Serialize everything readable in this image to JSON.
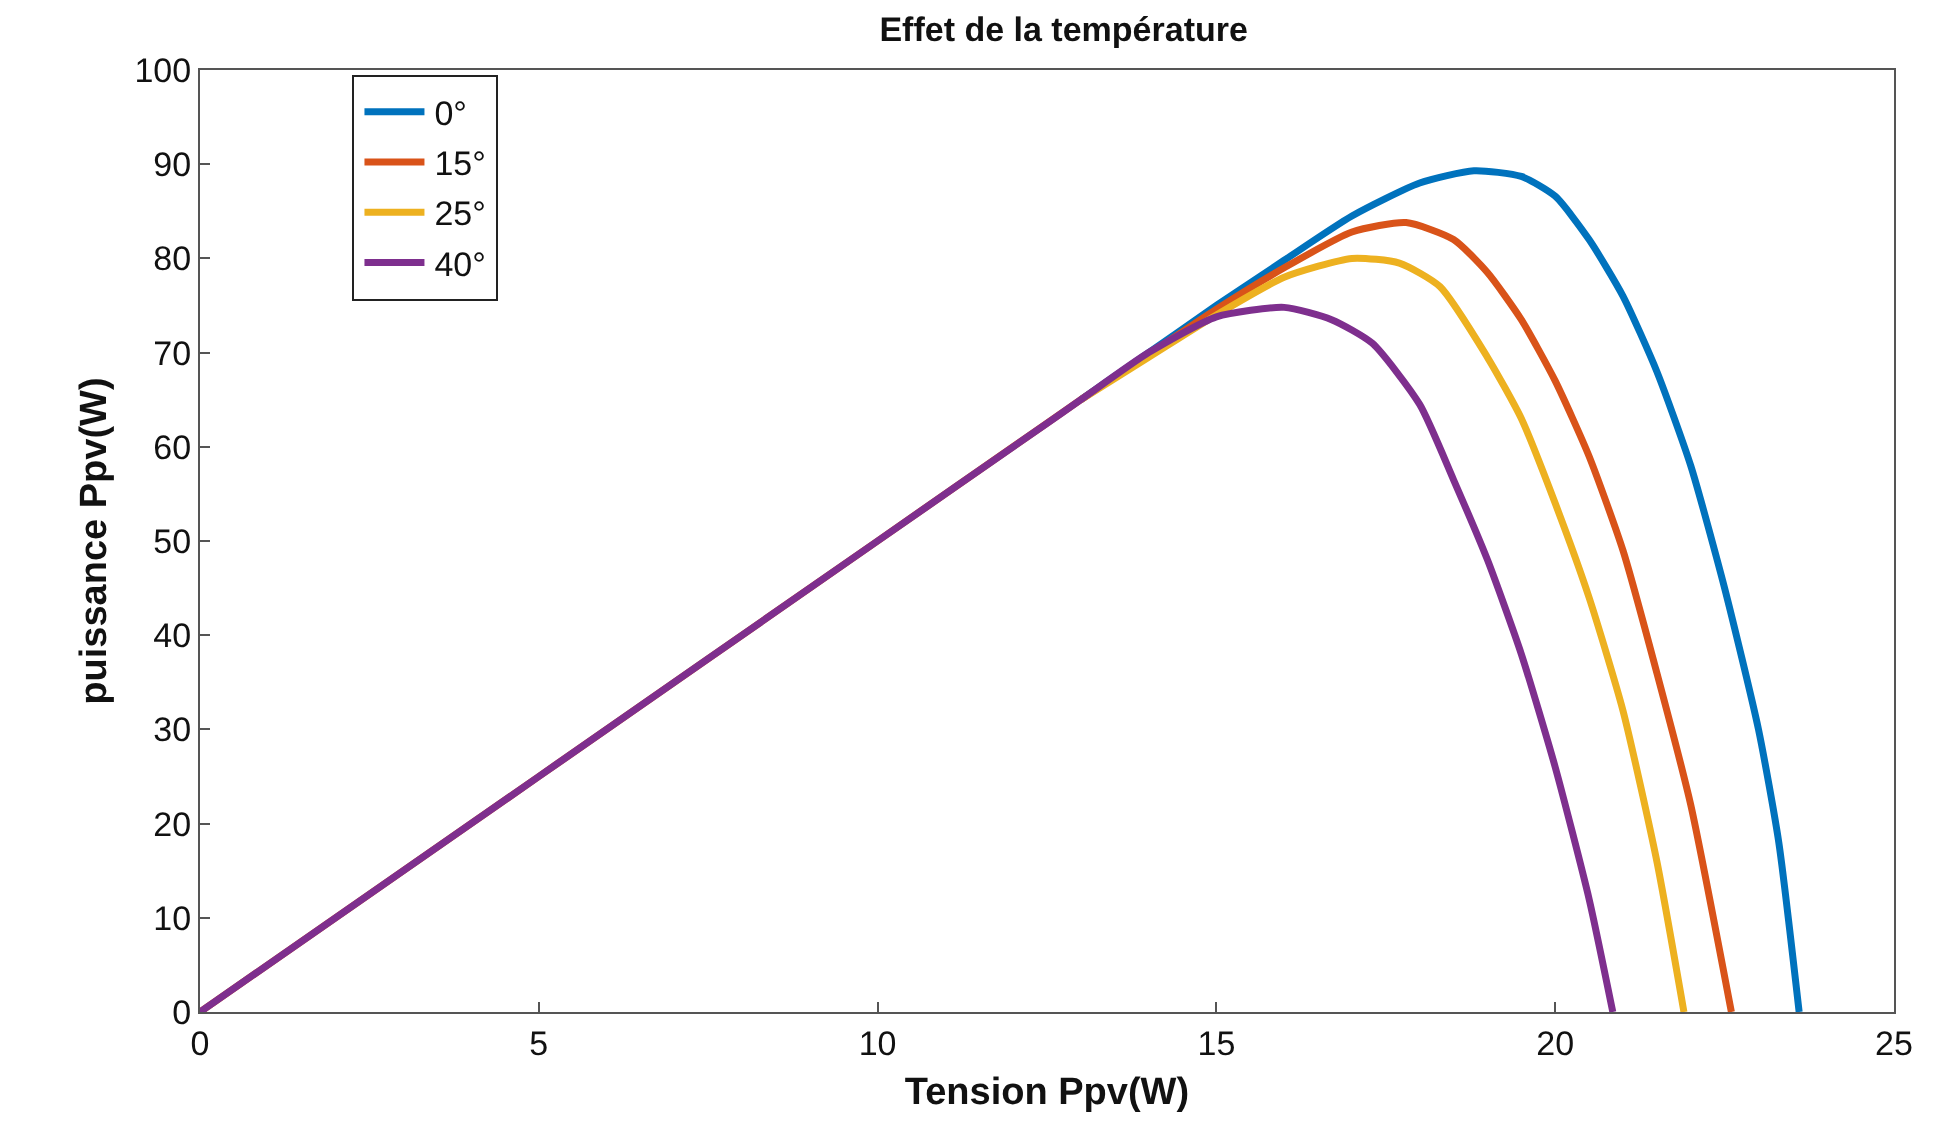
{
  "chart_data": {
    "type": "line",
    "title": "Effet de la température",
    "xlabel": "Tension Ppv(W)",
    "ylabel": "puissance Ppv(W)",
    "xlim": [
      0,
      25
    ],
    "xticks": [
      0,
      5,
      10,
      15,
      20,
      25
    ],
    "ylim": [
      0,
      100
    ],
    "yticks": [
      0,
      10,
      20,
      30,
      40,
      50,
      60,
      70,
      80,
      90,
      100
    ],
    "legend": "top left",
    "marker": "none",
    "line_style": "solid",
    "series": [
      {
        "name": "0°",
        "color": "#0072bd",
        "x": [
          13,
          14,
          15,
          16,
          17,
          18,
          18.8,
          19.5,
          20,
          20.5,
          21,
          21.5,
          22,
          22.5,
          23,
          23.3,
          23.6
        ],
        "values": [
          65,
          70,
          75,
          79.8,
          84.5,
          88,
          89.3,
          88.7,
          86.6,
          82,
          76,
          68,
          58,
          45,
          30,
          18,
          0
        ]
      },
      {
        "name": "15°",
        "color": "#d95319",
        "x": [
          0,
          5,
          10,
          13,
          14,
          15,
          16,
          17,
          17.8,
          18.5,
          19,
          19.5,
          20,
          20.5,
          21,
          21.5,
          22,
          22.6
        ],
        "values": [
          0,
          25,
          50,
          65,
          69.8,
          74.6,
          79,
          82.8,
          83.8,
          82,
          78.5,
          73.5,
          67,
          59,
          49,
          36,
          22,
          0
        ]
      },
      {
        "name": "25°",
        "color": "#edb120",
        "x": [
          13,
          14,
          15,
          16,
          17,
          17.7,
          18.3,
          19,
          19.5,
          20,
          20.5,
          21,
          21.5,
          21.9
        ],
        "values": [
          65,
          69.5,
          74,
          78,
          80,
          79.5,
          77,
          69.5,
          63,
          54,
          44,
          32,
          16,
          0
        ]
      },
      {
        "name": "40°",
        "color": "#7e2f8e",
        "x": [
          0,
          5,
          10,
          12.5,
          13,
          14,
          15,
          16,
          16.7,
          17.3,
          18,
          18.5,
          19,
          19.5,
          20,
          20.5,
          20.85
        ],
        "values": [
          0,
          25,
          50,
          62.5,
          65,
          70,
          73.8,
          74.8,
          73.5,
          71,
          64.5,
          56.5,
          48,
          38,
          26,
          12,
          0
        ]
      }
    ]
  }
}
